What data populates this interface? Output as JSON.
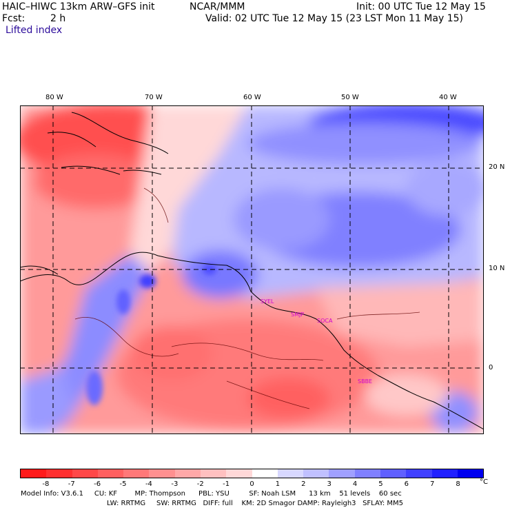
{
  "header": {
    "model": "HAIC–HIWC 13km ARW–GFS init",
    "org": "NCAR/MMM",
    "init": "Init: 00 UTC Tue 12 May 15",
    "fcst_label": "Fcst:",
    "fcst_value": "2 h",
    "valid": "Valid: 02 UTC Tue 12 May 15 (23 LST Mon 11 May 15)",
    "field": "Lifted index"
  },
  "map": {
    "lon_labels": [
      "80 W",
      "70 W",
      "60 W",
      "50 W",
      "40 W"
    ],
    "lat_labels": [
      "20 N",
      "10 N",
      "0"
    ],
    "stations": [
      "SYEL",
      "SMJP",
      "SOCA",
      "SBBE"
    ]
  },
  "colorbar": {
    "labels": [
      "-8",
      "-7",
      "-6",
      "-5",
      "-4",
      "-3",
      "-2",
      "-1",
      "0",
      "1",
      "2",
      "3",
      "4",
      "5",
      "6",
      "7",
      "8"
    ],
    "unit": "°C",
    "colors": [
      "#ff1a1a",
      "#ff3030",
      "#ff4848",
      "#ff6060",
      "#ff7878",
      "#ff9090",
      "#ffa8a8",
      "#ffc0c0",
      "#ffd8d8",
      "#ffffff",
      "#d8d8ff",
      "#c0c0ff",
      "#a0a0ff",
      "#8080ff",
      "#6060ff",
      "#4040ff",
      "#2020ff",
      "#0000f0"
    ]
  },
  "footer": {
    "line1": "Model Info: V3.6.1     CU: KF        MP: Thompson      PBL: YSU         SF: Noah LSM      13 km    51 levels    60 sec",
    "line2": "LW: RRTMG     SW: RRTMG   DIFF: full    KM: 2D Smagor DAMP: Rayleigh3   SFLAY: MM5"
  }
}
